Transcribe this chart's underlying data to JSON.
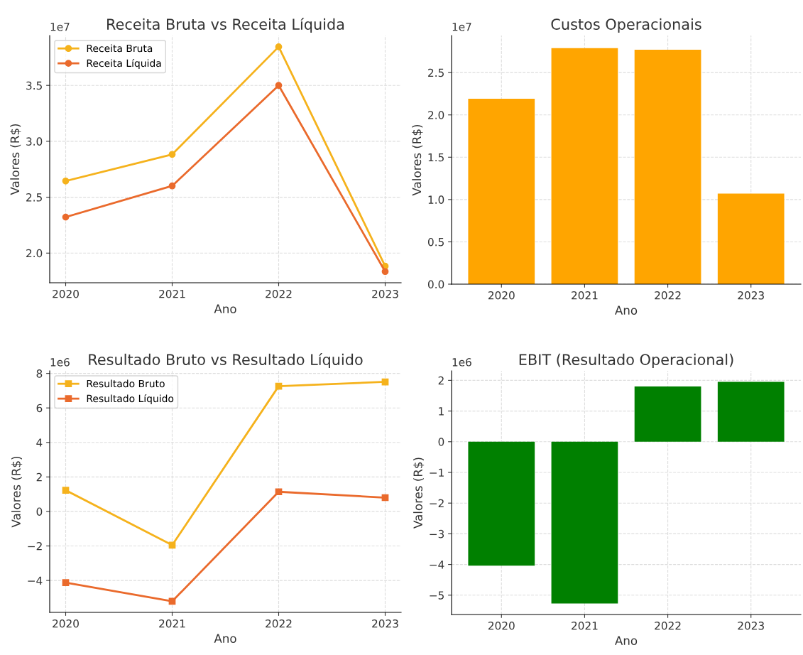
{
  "chart_data": [
    {
      "type": "line",
      "title": "Receita Bruta vs Receita Líquida",
      "xlabel": "Ano",
      "ylabel": "Valores (R$)",
      "annotations": [
        "1e7"
      ],
      "x": [
        2020,
        2021,
        2022,
        2023
      ],
      "series": [
        {
          "name": "Receita Bruta",
          "color": "#f5b21c",
          "values": [
            2.645,
            2.883,
            3.845,
            1.883
          ]
        },
        {
          "name": "Receita Líquida",
          "color": "#ea6a2c",
          "values": [
            2.322,
            2.601,
            3.5,
            1.835
          ]
        }
      ],
      "xlim": [
        2019.85,
        2023.15
      ],
      "xticks": [
        2020,
        2021,
        2022,
        2023
      ],
      "ylim": [
        1.735,
        3.946
      ],
      "yticks": [
        {
          "value": 2,
          "label": "2.0"
        },
        {
          "value": 2.5,
          "label": "2.5"
        },
        {
          "value": 3,
          "label": "3.0"
        },
        {
          "value": 3.5,
          "label": "3.5"
        }
      ],
      "grid": true,
      "legend": "top left",
      "marker": "circle",
      "line_style": "solid"
    },
    {
      "type": "bar",
      "title": "Custos Operacionais",
      "xlabel": "Ano",
      "ylabel": "Valores (R$)",
      "annotations": [
        "1e7"
      ],
      "categories": [
        "2020",
        "2021",
        "2022",
        "2023"
      ],
      "values": [
        2.19,
        2.79,
        2.77,
        1.07
      ],
      "color": "#ffa500",
      "ylim": [
        0,
        2.938
      ],
      "yticks": [
        {
          "value": 0,
          "label": "0.0"
        },
        {
          "value": 0.5,
          "label": "0.5"
        },
        {
          "value": 1,
          "label": "1.0"
        },
        {
          "value": 1.5,
          "label": "1.5"
        },
        {
          "value": 2,
          "label": "2.0"
        },
        {
          "value": 2.5,
          "label": "2.5"
        }
      ],
      "grid": true
    },
    {
      "type": "line",
      "title": "Resultado Bruto vs Resultado Líquido",
      "xlabel": "Ano",
      "ylabel": "Valores (R$)",
      "annotations": [
        "1e6"
      ],
      "x": [
        2020,
        2021,
        2022,
        2023
      ],
      "series": [
        {
          "name": "Resultado Bruto",
          "color": "#f5b21c",
          "values": [
            1.23,
            -1.95,
            7.26,
            7.51
          ]
        },
        {
          "name": "Resultado Líquido",
          "color": "#ea6a2c",
          "values": [
            -4.13,
            -5.21,
            1.14,
            0.8
          ]
        }
      ],
      "xlim": [
        2019.85,
        2023.15
      ],
      "xticks": [
        2020,
        2021,
        2022,
        2023
      ],
      "ylim": [
        -5.85,
        8.15
      ],
      "yticks": [
        {
          "value": -4,
          "label": "−4"
        },
        {
          "value": -2,
          "label": "−2"
        },
        0,
        2,
        4,
        6,
        8
      ],
      "grid": true,
      "legend": "top left",
      "marker": "square",
      "line_style": "solid"
    },
    {
      "type": "bar",
      "title": "EBIT (Resultado Operacional)",
      "xlabel": "Ano",
      "ylabel": "Valores (R$)",
      "annotations": [
        "1e6"
      ],
      "categories": [
        "2020",
        "2021",
        "2022",
        "2023"
      ],
      "values": [
        -4.04,
        -5.27,
        1.8,
        1.95
      ],
      "color": "#008000",
      "ylim": [
        -5.63,
        2.31
      ],
      "yticks": [
        {
          "value": -5,
          "label": "−5"
        },
        {
          "value": -4,
          "label": "−4"
        },
        {
          "value": -3,
          "label": "−3"
        },
        {
          "value": -2,
          "label": "−2"
        },
        {
          "value": -1,
          "label": "−1"
        },
        0,
        1,
        2
      ],
      "grid": true
    }
  ]
}
